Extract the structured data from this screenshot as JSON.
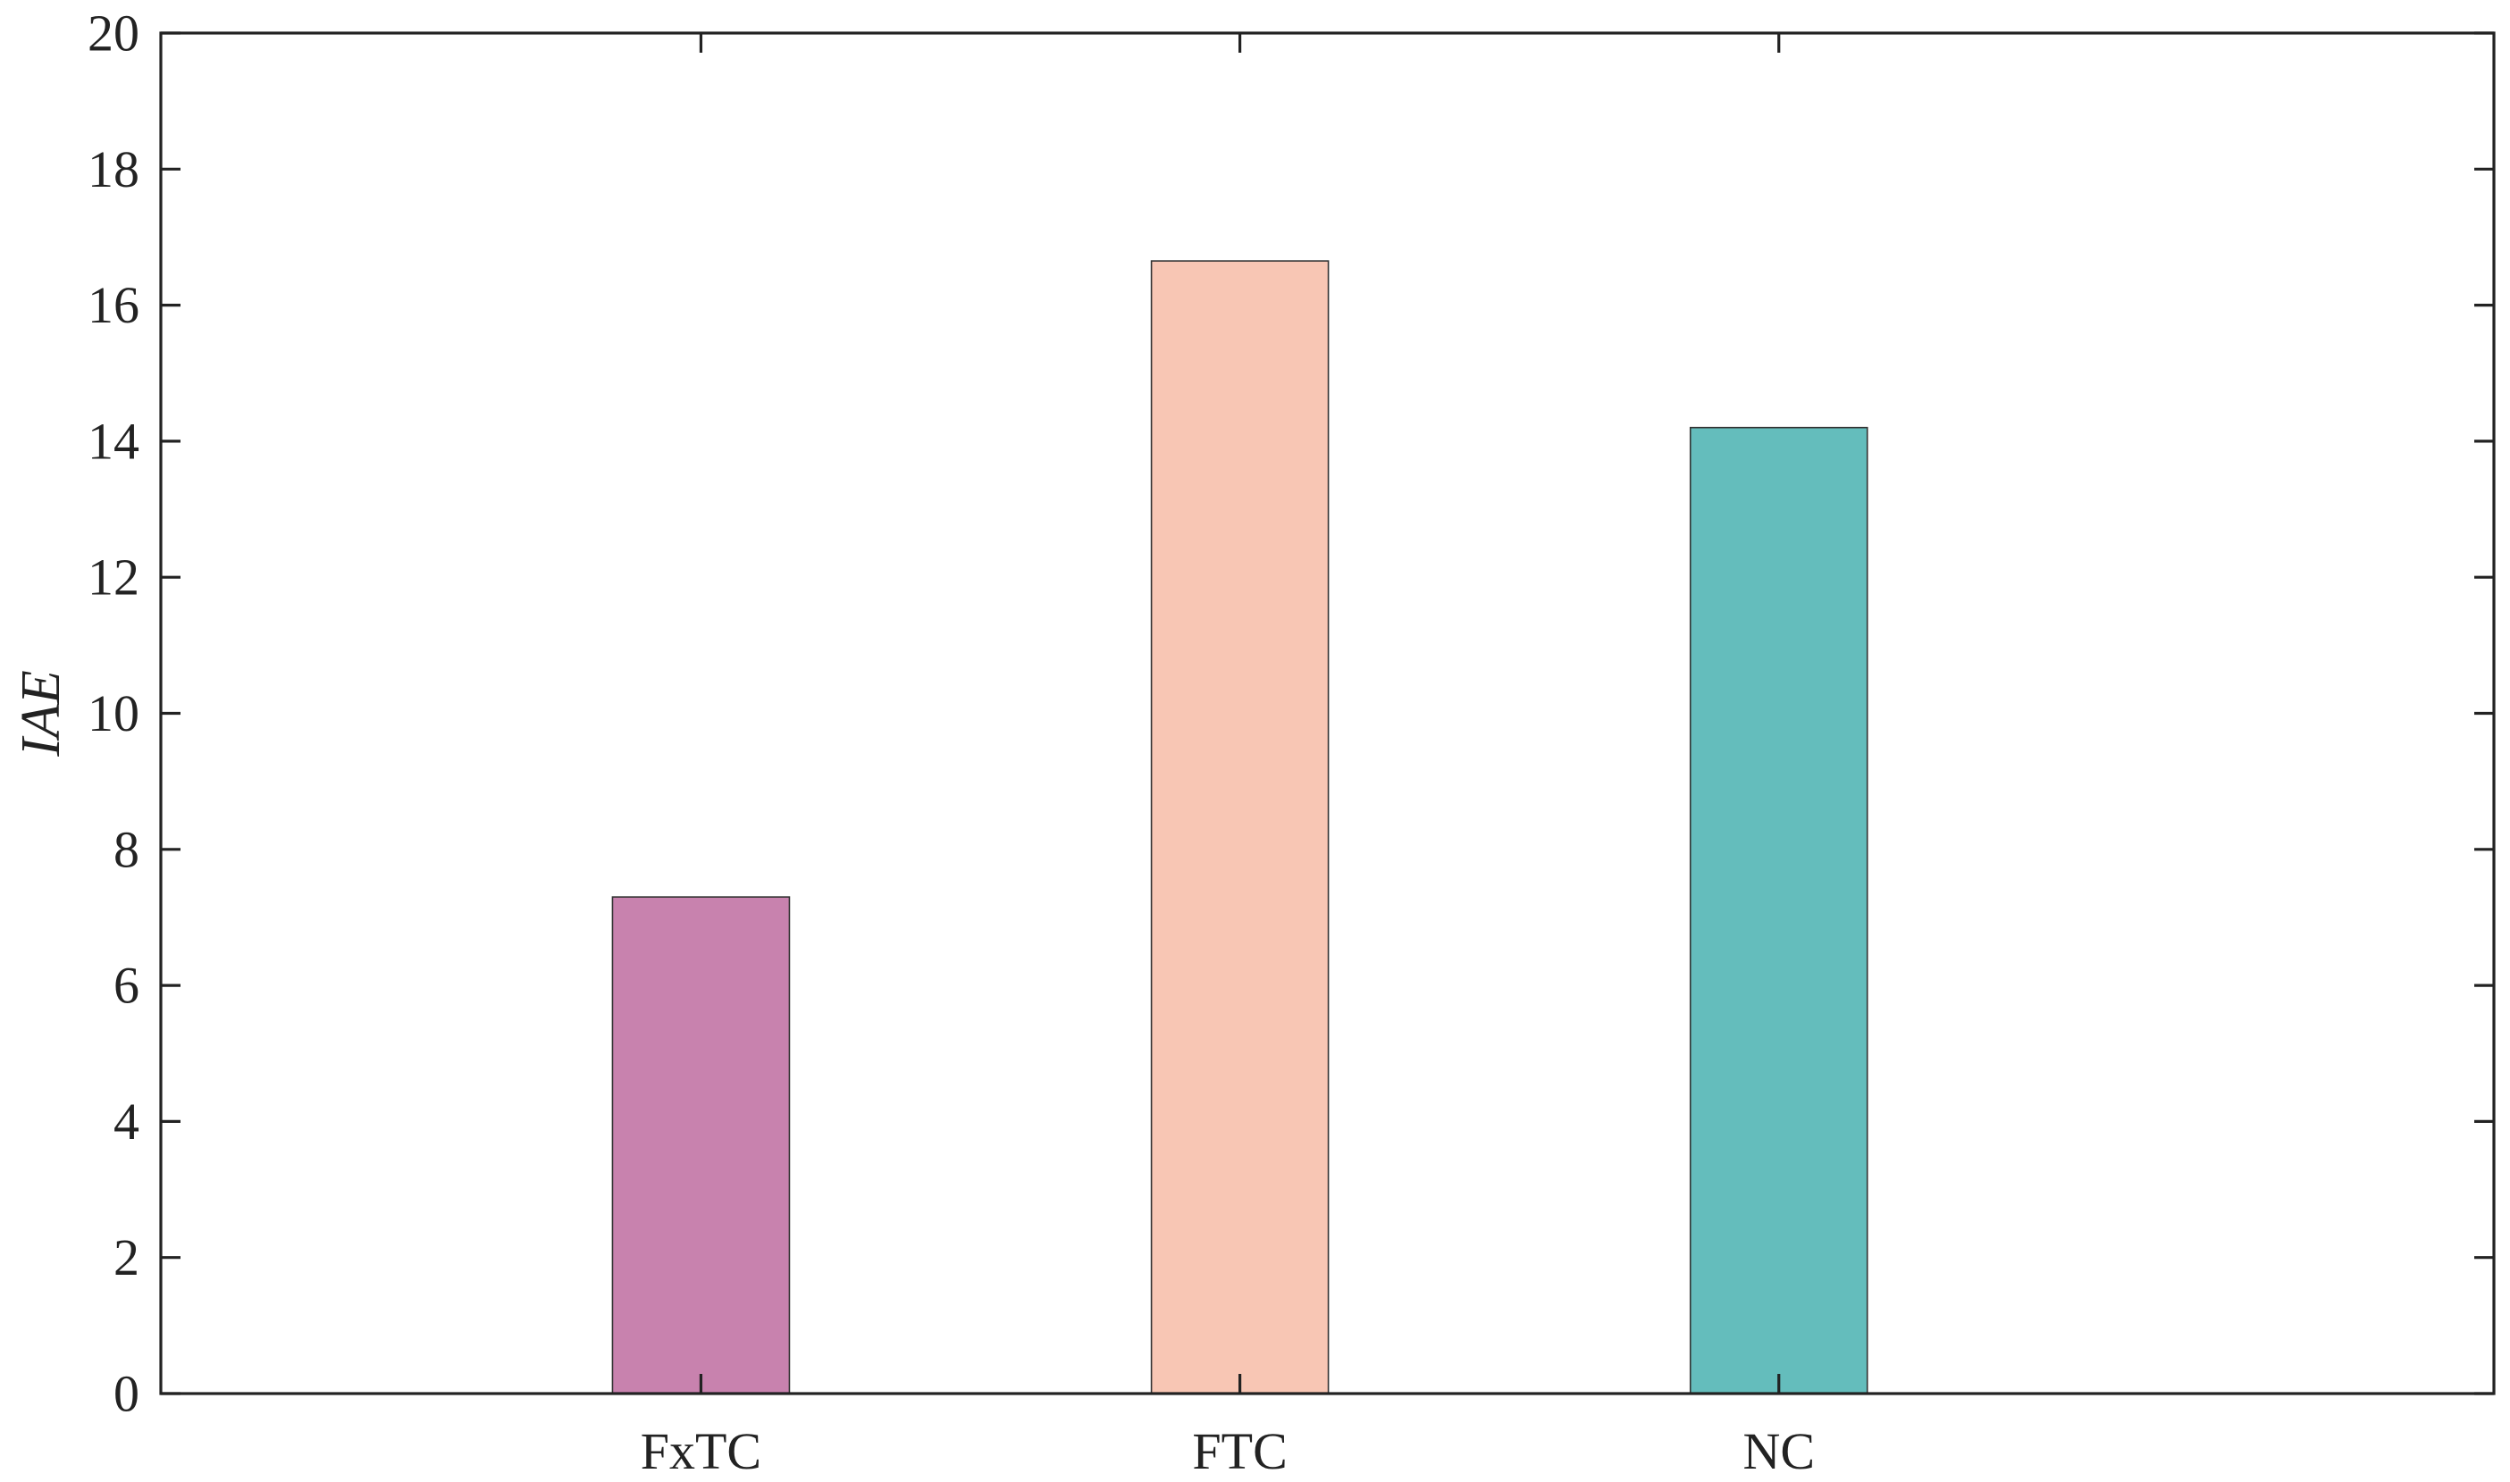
{
  "chart_data": {
    "type": "bar",
    "title": "",
    "xlabel": "",
    "ylabel": "IAE",
    "categories": [
      "FxTC",
      "FTC",
      "NC"
    ],
    "values": [
      7.3,
      16.65,
      14.2
    ],
    "colors": [
      "#C882AE",
      "#F8C6B4",
      "#64BDBC"
    ],
    "ylim": [
      0,
      20
    ],
    "yticks": [
      0,
      2,
      4,
      6,
      8,
      10,
      12,
      14,
      16,
      18,
      20
    ],
    "grid": false,
    "legend": "none"
  }
}
